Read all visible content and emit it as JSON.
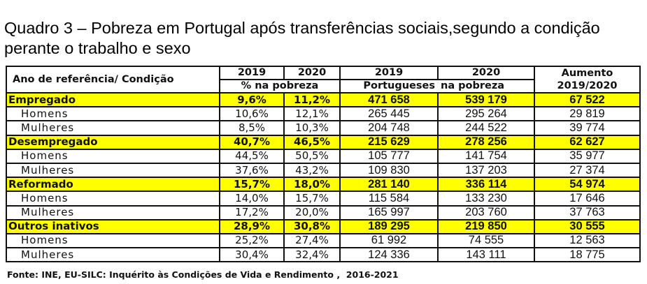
{
  "title": "Quadro 3 – Pobreza em Portugal após transferências sociais,segundo a condição perante o trabalho e sexo",
  "header": {
    "row_label": "Ano de referência/ Condição",
    "pct_2019": "2019",
    "pct_2020": "2020",
    "pct_label": "% na pobreza",
    "num_2019": "2019",
    "num_2020": "2020",
    "num_label_1": "Portugueses",
    "num_label_2": "na pobreza",
    "increase_1": "Aumento",
    "increase_2": "2019/2020"
  },
  "rows": [
    {
      "label": "Empregado",
      "main": true,
      "p2019": "9,6%",
      "p2020": "11,2%",
      "n2019": "471 658",
      "n2020": "539 179",
      "inc": "67 522"
    },
    {
      "label": "Homens",
      "main": false,
      "p2019": "10,6%",
      "p2020": "12,1%",
      "n2019": "265 445",
      "n2020": "295 264",
      "inc": "29 819"
    },
    {
      "label": "Mulheres",
      "main": false,
      "p2019": "8,5%",
      "p2020": "10,3%",
      "n2019": "204 748",
      "n2020": "244 522",
      "inc": "39 774"
    },
    {
      "label": "Desempregado",
      "main": true,
      "p2019": "40,7%",
      "p2020": "46,5%",
      "n2019": "215 629",
      "n2020": "278 256",
      "inc": "62 627"
    },
    {
      "label": "Homens",
      "main": false,
      "p2019": "44,5%",
      "p2020": "50,5%",
      "n2019": "105 777",
      "n2020": "141 754",
      "inc": "35 977"
    },
    {
      "label": "Mulheres",
      "main": false,
      "p2019": "37,6%",
      "p2020": "43,2%",
      "n2019": "109 830",
      "n2020": "137 203",
      "inc": "27 374"
    },
    {
      "label": "Reformado",
      "main": true,
      "p2019": "15,7%",
      "p2020": "18,0%",
      "n2019": "281 140",
      "n2020": "336 114",
      "inc": "54 974"
    },
    {
      "label": "Homens",
      "main": false,
      "p2019": "14,0%",
      "p2020": "15,7%",
      "n2019": "115 584",
      "n2020": "133 230",
      "inc": "17 646"
    },
    {
      "label": "Mulheres",
      "main": false,
      "p2019": "17,2%",
      "p2020": "20,0%",
      "n2019": "165 997",
      "n2020": "203 760",
      "inc": "37 763"
    },
    {
      "label": "Outros inativos",
      "main": true,
      "p2019": "28,9%",
      "p2020": "30,8%",
      "n2019": "189 295",
      "n2020": "219 850",
      "inc": "30 555"
    },
    {
      "label": "Homens",
      "main": false,
      "p2019": "25,2%",
      "p2020": "27,4%",
      "n2019": "61 992",
      "n2020": "74 555",
      "inc": "12 563"
    },
    {
      "label": "Mulheres",
      "main": false,
      "p2019": "30,4%",
      "p2020": "32,4%",
      "n2019": "124 336",
      "n2020": "143 111",
      "inc": "18 775"
    }
  ],
  "source": "Fonte: INE, EU-SILC: Inquérito às Condições de Vida e Rendimento ,  2016-2021",
  "colors": {
    "highlight": "#ffff00",
    "border": "#111111"
  }
}
